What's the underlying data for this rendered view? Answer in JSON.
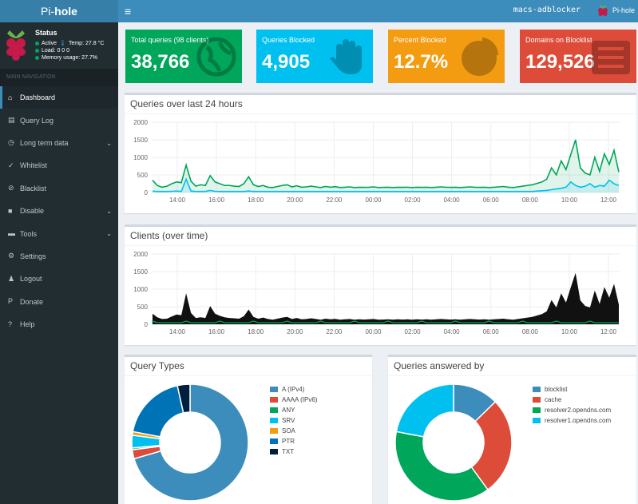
{
  "header": {
    "logo_pre": "Pi-",
    "logo_bold": "hole",
    "hostname": "macs-adblocker",
    "user": "Pi-hole"
  },
  "sidebar": {
    "status": {
      "title": "Status",
      "active": "Active",
      "temp": "Temp: 27.8 °C",
      "load": "Load:  0  0  0",
      "memory": "Memory usage:  27.7%"
    },
    "nav_header": "MAIN NAVIGATION",
    "items": [
      {
        "label": "Dashboard",
        "icon": "home-icon",
        "active": true
      },
      {
        "label": "Query Log",
        "icon": "file-icon"
      },
      {
        "label": "Long term data",
        "icon": "clock-icon",
        "chevron": true
      },
      {
        "label": "Whitelist",
        "icon": "check-circle-icon"
      },
      {
        "label": "Blacklist",
        "icon": "ban-icon"
      },
      {
        "label": "Disable",
        "icon": "stop-icon",
        "chevron": true
      },
      {
        "label": "Tools",
        "icon": "folder-icon",
        "chevron": true
      },
      {
        "label": "Settings",
        "icon": "gears-icon"
      },
      {
        "label": "Logout",
        "icon": "user-times-icon"
      },
      {
        "label": "Donate",
        "icon": "paypal-icon"
      },
      {
        "label": "Help",
        "icon": "question-circle-icon"
      }
    ]
  },
  "info_boxes": [
    {
      "label": "Total queries (98 clients)",
      "value": "38,766",
      "color": "#00a65a",
      "icon": "globe-icon"
    },
    {
      "label": "Queries Blocked",
      "value": "4,905",
      "color": "#00c0ef",
      "icon": "hand-icon"
    },
    {
      "label": "Percent Blocked",
      "value": "12.7%",
      "color": "#f39c12",
      "icon": "pie-chart-icon"
    },
    {
      "label": "Domains on Blocklist",
      "value": "129,526",
      "color": "#dd4b39",
      "icon": "list-icon"
    }
  ],
  "chart_data": [
    {
      "type": "area",
      "title": "Queries over last 24 hours",
      "xticks": [
        "14:00",
        "16:00",
        "18:00",
        "20:00",
        "22:00",
        "00:00",
        "02:00",
        "04:00",
        "06:00",
        "08:00",
        "10:00",
        "12:00"
      ],
      "yticks": [
        "0",
        "500",
        "1000",
        "1500",
        "2000"
      ],
      "ylim": [
        0,
        2000
      ],
      "series": [
        {
          "color": "#00a65a",
          "values": [
            350,
            200,
            150,
            180,
            250,
            300,
            280,
            780,
            320,
            180,
            220,
            200,
            480,
            300,
            250,
            200,
            200,
            180,
            170,
            250,
            450,
            220,
            170,
            200,
            150,
            140,
            170,
            200,
            220,
            160,
            190,
            150,
            160,
            180,
            160,
            140,
            170,
            150,
            165,
            140,
            150,
            160,
            140,
            150,
            145,
            150,
            160,
            140,
            145,
            150,
            140,
            150,
            145,
            150,
            140,
            150,
            145,
            150,
            140,
            150,
            160,
            150,
            145,
            150,
            140,
            150,
            160,
            150,
            145,
            150,
            140,
            150,
            160,
            170,
            150,
            140,
            160,
            180,
            200,
            220,
            260,
            300,
            380,
            700,
            500,
            900,
            650,
            1080,
            1500,
            700,
            550,
            500,
            1000,
            600,
            1100,
            800,
            1200,
            580
          ]
        },
        {
          "color": "#00c0ef",
          "values": [
            40,
            30,
            30,
            30,
            35,
            40,
            30,
            380,
            40,
            30,
            30,
            30,
            60,
            35,
            30,
            30,
            30,
            30,
            30,
            30,
            40,
            30,
            30,
            30,
            30,
            30,
            30,
            30,
            30,
            30,
            30,
            30,
            30,
            30,
            30,
            30,
            30,
            30,
            30,
            30,
            30,
            30,
            30,
            30,
            30,
            30,
            30,
            30,
            30,
            30,
            30,
            30,
            30,
            30,
            30,
            30,
            30,
            30,
            30,
            30,
            30,
            30,
            30,
            30,
            30,
            30,
            30,
            30,
            30,
            30,
            30,
            30,
            30,
            30,
            30,
            30,
            30,
            30,
            30,
            30,
            40,
            50,
            60,
            80,
            100,
            120,
            150,
            300,
            200,
            150,
            180,
            250,
            150,
            200,
            180,
            350,
            250,
            200
          ]
        }
      ]
    },
    {
      "type": "area",
      "title": "Clients (over time)",
      "xticks": [
        "14:00",
        "16:00",
        "18:00",
        "20:00",
        "22:00",
        "00:00",
        "02:00",
        "04:00",
        "06:00",
        "08:00",
        "10:00",
        "12:00"
      ],
      "yticks": [
        "0",
        "500",
        "1000",
        "1500",
        "2000"
      ],
      "ylim": [
        0,
        2000
      ],
      "series": [
        {
          "color": "#111111",
          "values": [
            300,
            200,
            150,
            160,
            220,
            280,
            260,
            880,
            320,
            180,
            200,
            180,
            520,
            300,
            240,
            200,
            180,
            170,
            160,
            230,
            420,
            210,
            160,
            190,
            150,
            130,
            160,
            190,
            210,
            150,
            180,
            140,
            150,
            170,
            150,
            130,
            160,
            140,
            155,
            130,
            140,
            150,
            130,
            140,
            135,
            140,
            150,
            130,
            135,
            140,
            130,
            140,
            135,
            140,
            130,
            140,
            135,
            140,
            130,
            140,
            150,
            140,
            135,
            140,
            130,
            140,
            150,
            140,
            135,
            140,
            130,
            140,
            150,
            160,
            140,
            130,
            150,
            170,
            190,
            210,
            250,
            290,
            370,
            690,
            480,
            880,
            620,
            1050,
            1460,
            680,
            520,
            480,
            960,
            580,
            1060,
            760,
            1150,
            560
          ]
        }
      ]
    },
    {
      "type": "pie",
      "title": "Query Types",
      "labels": [
        "A (IPv4)",
        "AAAA (IPv6)",
        "ANY",
        "SRV",
        "SOA",
        "PTR",
        "TXT"
      ],
      "colors": [
        "#3c8dbc",
        "#dd4b39",
        "#00a65a",
        "#00c0ef",
        "#f39c12",
        "#0073b7",
        "#001f3f"
      ],
      "values": [
        70.5,
        2.5,
        0.5,
        3.5,
        1,
        18.5,
        3.5
      ]
    },
    {
      "type": "pie",
      "title": "Queries answered by",
      "labels": [
        "blocklist",
        "cache",
        "resolver2.opendns.com",
        "resolver1.opendns.com"
      ],
      "colors": [
        "#3c8dbc",
        "#dd4b39",
        "#00a65a",
        "#00c0ef"
      ],
      "values": [
        12.7,
        27.3,
        38,
        22
      ]
    }
  ]
}
